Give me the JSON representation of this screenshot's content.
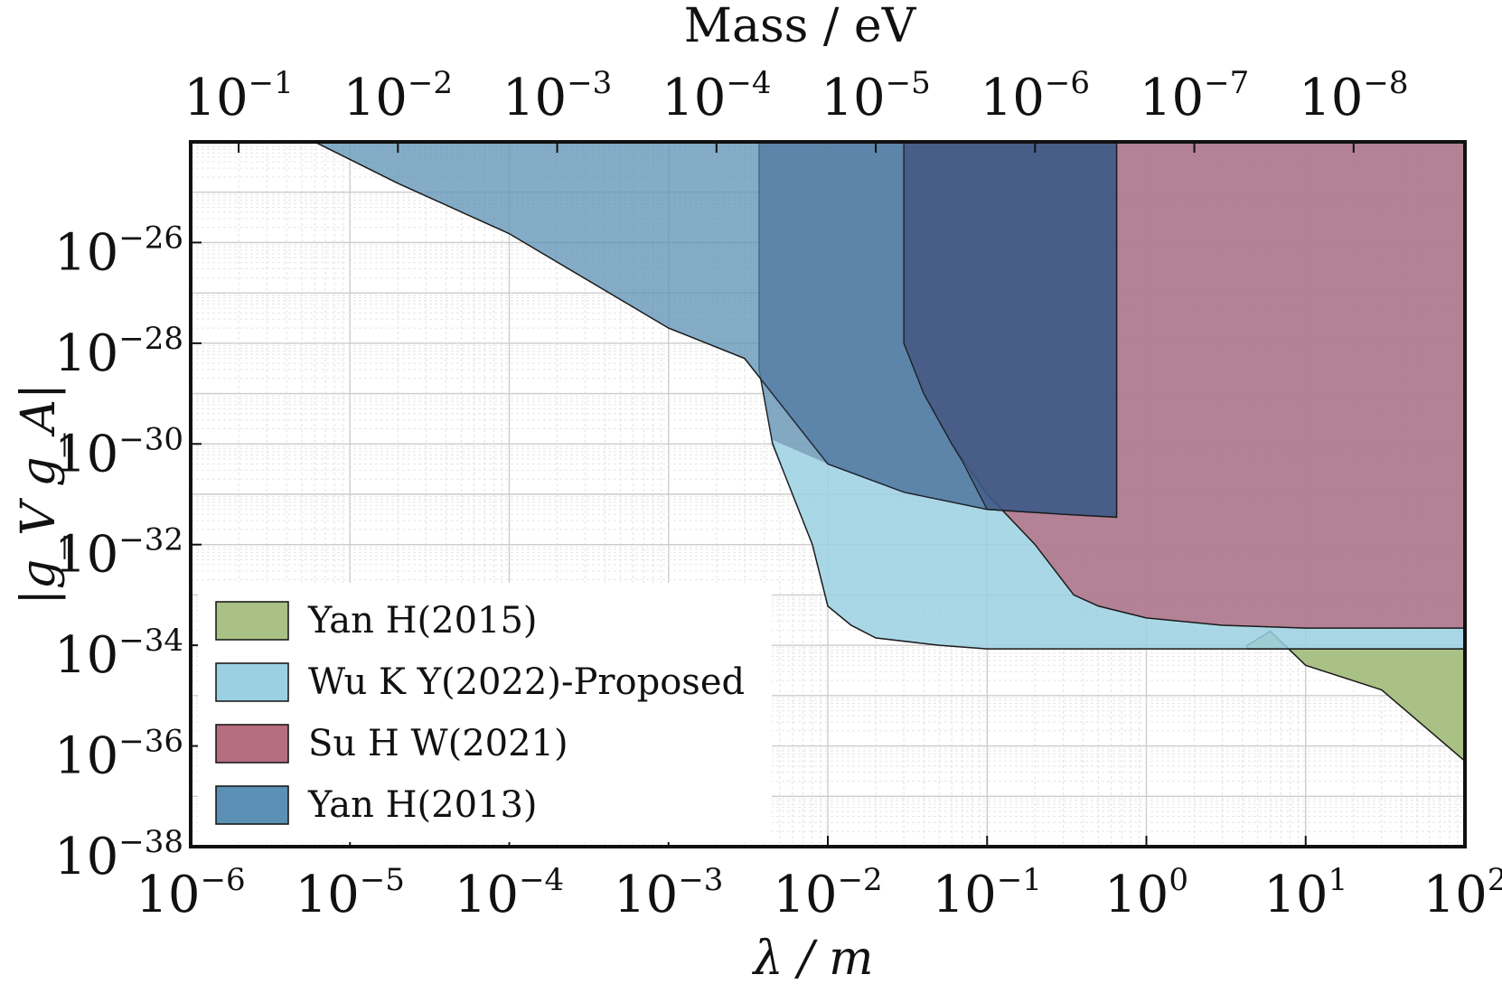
{
  "chart_data": {
    "type": "area",
    "title": "",
    "xlabel": "λ / m",
    "top_xlabel": "Mass / eV",
    "ylabel": "|g_V g_A|",
    "xscale": "log",
    "yscale": "log",
    "xlim": [
      1e-06,
      100
    ],
    "ylim": [
      1e-38,
      1e-24
    ],
    "grid": true,
    "legend_position": "lower-left",
    "x_tick_labels": [
      {
        "base": "10",
        "exp": "-6",
        "value": 1e-06
      },
      {
        "base": "10",
        "exp": "-5",
        "value": 1e-05
      },
      {
        "base": "10",
        "exp": "-4",
        "value": 0.0001
      },
      {
        "base": "10",
        "exp": "-3",
        "value": 0.001
      },
      {
        "base": "10",
        "exp": "-2",
        "value": 0.01
      },
      {
        "base": "10",
        "exp": "-1",
        "value": 0.1
      },
      {
        "base": "10",
        "exp": "0",
        "value": 1
      },
      {
        "base": "10",
        "exp": "1",
        "value": 10
      },
      {
        "base": "10",
        "exp": "2",
        "value": 100
      }
    ],
    "top_x_tick_labels": [
      {
        "base": "10",
        "exp": "-1",
        "lambda": 2e-06
      },
      {
        "base": "10",
        "exp": "-2",
        "lambda": 2e-05
      },
      {
        "base": "10",
        "exp": "-3",
        "lambda": 0.0002
      },
      {
        "base": "10",
        "exp": "-4",
        "lambda": 0.002
      },
      {
        "base": "10",
        "exp": "-5",
        "lambda": 0.02
      },
      {
        "base": "10",
        "exp": "-6",
        "lambda": 0.2
      },
      {
        "base": "10",
        "exp": "-7",
        "lambda": 2
      },
      {
        "base": "10",
        "exp": "-8",
        "lambda": 20
      }
    ],
    "y_tick_labels": [
      {
        "base": "10",
        "exp": "-26",
        "value": 1e-26
      },
      {
        "base": "10",
        "exp": "-28",
        "value": 1e-28
      },
      {
        "base": "10",
        "exp": "-30",
        "value": 1e-30
      },
      {
        "base": "10",
        "exp": "-32",
        "value": 1e-32
      },
      {
        "base": "10",
        "exp": "-34",
        "value": 1e-34
      },
      {
        "base": "10",
        "exp": "-36",
        "value": 1e-36
      },
      {
        "base": "10",
        "exp": "-38",
        "value": 1e-38
      }
    ],
    "series": [
      {
        "name": "Yan H(2015)",
        "color": "#a9c185",
        "opacity": 1.0,
        "boundary": [
          [
            4.3,
            1e-34
          ],
          [
            6,
            1.9e-34
          ],
          [
            10,
            4e-35
          ],
          [
            30,
            1.3e-35
          ],
          [
            100,
            5e-37
          ]
        ]
      },
      {
        "name": "Wu K Y(2022)-Proposed",
        "color": "#9bd0e2",
        "opacity": 0.85,
        "boundary": [
          [
            0.0037,
            3e-29
          ],
          [
            0.0045,
            1e-30
          ],
          [
            0.006,
            1e-31
          ],
          [
            0.008,
            1e-32
          ],
          [
            0.01,
            6e-34
          ],
          [
            0.014,
            2.5e-34
          ],
          [
            0.02,
            1.4e-34
          ],
          [
            0.05,
            1e-34
          ],
          [
            0.1,
            8.5e-35
          ],
          [
            1,
            8.5e-35
          ],
          [
            100,
            8.5e-35
          ]
        ]
      },
      {
        "name": "Su H W(2021)",
        "color": "#b56d80",
        "opacity": 0.8,
        "boundary": [
          [
            0.03,
            1e-28
          ],
          [
            0.04,
            1e-29
          ],
          [
            0.06,
            1e-30
          ],
          [
            0.1,
            1e-31
          ],
          [
            0.2,
            1e-32
          ],
          [
            0.35,
            1e-33
          ],
          [
            0.5,
            6e-34
          ],
          [
            1,
            3.5e-34
          ],
          [
            3,
            2.5e-34
          ],
          [
            10,
            2.2e-34
          ],
          [
            100,
            2.2e-34
          ]
        ]
      },
      {
        "name": "Yan H(2013)",
        "color": "#5b90b4",
        "opacity": 0.75,
        "boundary": [
          [
            6e-06,
            1e-24
          ],
          [
            2e-05,
            1.5e-25
          ],
          [
            0.0001,
            1.5e-26
          ],
          [
            0.001,
            2e-28
          ],
          [
            0.003,
            5e-29
          ],
          [
            0.01,
            4e-31
          ],
          [
            0.03,
            1.1e-31
          ],
          [
            0.1,
            5e-32
          ],
          [
            0.3,
            4e-32
          ],
          [
            0.65,
            3.5e-32
          ]
        ],
        "right_edge": 0.65
      },
      {
        "name": "",
        "color": "#38507f",
        "opacity": 0.55,
        "region": "dark block",
        "lambda_range": [
          0.0037,
          0.65
        ]
      }
    ]
  }
}
